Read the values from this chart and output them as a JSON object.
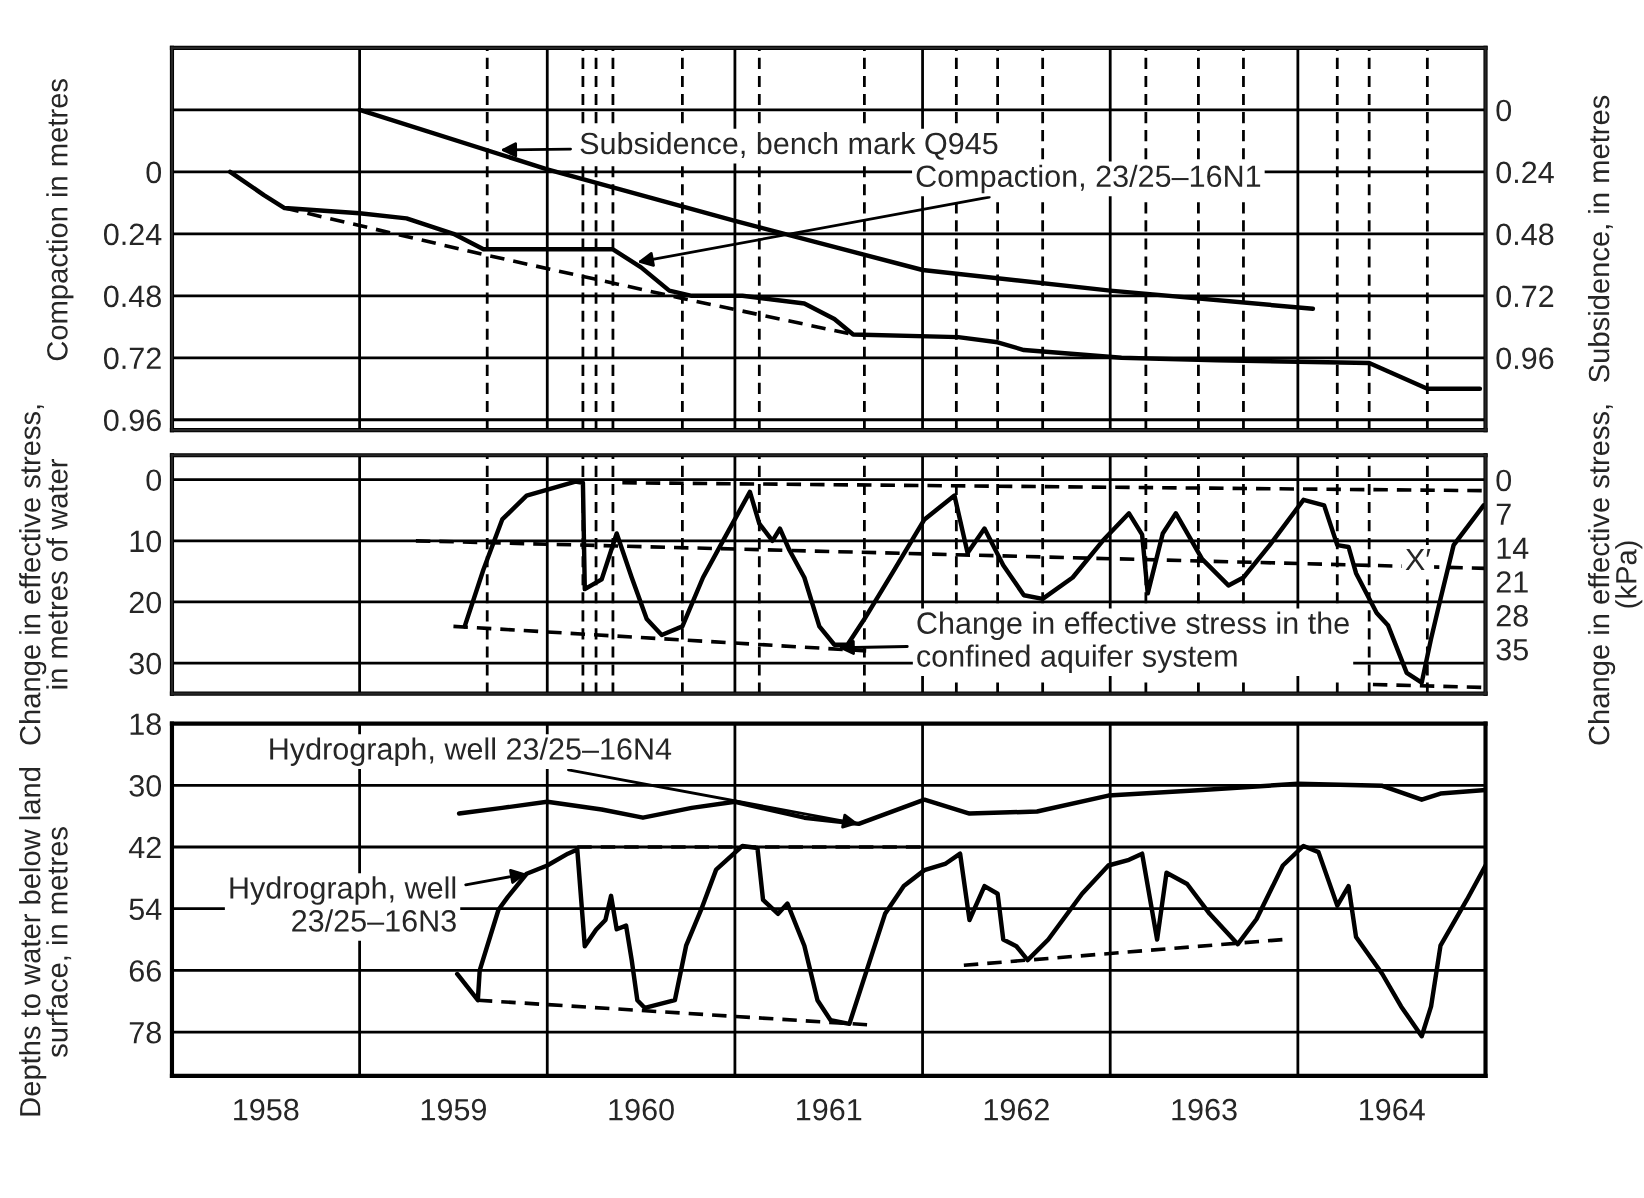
{
  "chart_data": [
    {
      "type": "line",
      "xlim": [
        1958,
        1965
      ],
      "xticks": [
        {
          "value": 1959,
          "label": null
        },
        {
          "value": 1960,
          "label": null
        },
        {
          "value": 1961,
          "label": null
        },
        {
          "value": 1962,
          "label": null
        },
        {
          "value": 1963,
          "label": null
        },
        {
          "value": 1964,
          "label": null
        }
      ],
      "ylim": [
        1.0,
        -0.48
      ],
      "yticks": [
        {
          "value": -0.24,
          "label": null
        },
        0,
        0.24,
        0.48,
        0.72,
        0.96
      ],
      "y2lim": [
        1.24,
        -0.24
      ],
      "y2ticks": [
        0,
        0.24,
        0.48,
        0.72,
        0.96
      ],
      "ylabel": "Compaction in metres",
      "y2label": "Subsidence, in metres",
      "grid": true,
      "tick_labels": "y",
      "series": [
        {
          "color": "#000000",
          "line_style": "solid",
          "x": [
            1959.0,
            1960.0,
            1961.0,
            1962.0,
            1963.0,
            1964.08
          ],
          "values": [
            0,
            0.23,
            0.43,
            0.62,
            0.7,
            0.77
          ],
          "axis": "y2"
        },
        {
          "color": "#000000",
          "line_style": "solid",
          "x": [
            1958.31,
            1958.49,
            1958.6,
            1959.0,
            1959.25,
            1959.5,
            1959.66,
            1960.18,
            1960.35,
            1960.5,
            1960.65,
            1960.77,
            1961.04,
            1961.37,
            1961.53,
            1961.63,
            1962.19,
            1962.4,
            1962.54,
            1963.06,
            1963.57,
            1964.38,
            1964.69,
            1964.97
          ],
          "values": [
            0,
            0.09,
            0.14,
            0.16,
            0.18,
            0.24,
            0.3,
            0.3,
            0.3,
            0.37,
            0.46,
            0.48,
            0.48,
            0.51,
            0.57,
            0.63,
            0.64,
            0.66,
            0.69,
            0.72,
            0.73,
            0.74,
            0.84,
            0.84
          ]
        },
        {
          "color": "#000000",
          "line_style": "dashed",
          "x": [
            1958.6,
            1959.66,
            1960.72,
            1961.63
          ],
          "values": [
            0.14,
            0.32,
            0.49,
            0.63
          ]
        }
      ],
      "ref_lines": [
        {
          "axis": "x",
          "value": 1959.68,
          "line_style": "dashed"
        },
        {
          "axis": "x",
          "value": 1960.19,
          "line_style": "dashed"
        },
        {
          "axis": "x",
          "value": 1960.26,
          "line_style": "dashed"
        },
        {
          "axis": "x",
          "value": 1960.35,
          "line_style": "dashed"
        },
        {
          "axis": "x",
          "value": 1960.72,
          "line_style": "dashed"
        },
        {
          "axis": "x",
          "value": 1961.13,
          "line_style": "dashed"
        },
        {
          "axis": "x",
          "value": 1961.69,
          "line_style": "dashed"
        },
        {
          "axis": "x",
          "value": 1962.18,
          "line_style": "dashed"
        },
        {
          "axis": "x",
          "value": 1962.4,
          "line_style": "dashed"
        },
        {
          "axis": "x",
          "value": 1962.64,
          "line_style": "dashed"
        },
        {
          "axis": "x",
          "value": 1963.19,
          "line_style": "dashed"
        },
        {
          "axis": "x",
          "value": 1963.47,
          "line_style": "dashed"
        },
        {
          "axis": "x",
          "value": 1963.71,
          "line_style": "dashed"
        },
        {
          "axis": "x",
          "value": 1964.21,
          "line_style": "dashed"
        },
        {
          "axis": "x",
          "value": 1964.38,
          "line_style": "dashed"
        },
        {
          "axis": "x",
          "value": 1964.69,
          "line_style": "dashed"
        }
      ],
      "annotations": [
        "Subsidence, bench mark Q945",
        {
          "text": "Compaction, 23/25–16N1",
          "x": 1960.48,
          "y": 0.35
        }
      ]
    },
    {
      "type": "line",
      "xlim": [
        1958,
        1965
      ],
      "xticks": [
        {
          "value": 1959,
          "label": null
        },
        {
          "value": 1960,
          "label": null
        },
        {
          "value": 1961,
          "label": null
        },
        {
          "value": 1962,
          "label": null
        },
        {
          "value": 1963,
          "label": null
        },
        {
          "value": 1964,
          "label": null
        }
      ],
      "ylim": [
        35,
        -4
      ],
      "yticks": [
        0,
        10,
        20,
        30
      ],
      "y2lim": [
        44.2,
        -5.1
      ],
      "y2ticks": [
        0,
        7,
        14,
        21,
        28,
        35
      ],
      "ylabel": "Change in effective stress,\nin metres of water",
      "y2label": "Change in effective stress,\n(kPa)",
      "grid": true,
      "tick_labels": "y",
      "series": [
        {
          "color": "#000000",
          "line_style": "solid",
          "x": [
            1959.56,
            1959.66,
            1959.76,
            1959.89,
            1960.15,
            1960.19,
            1960.2,
            1960.29,
            1960.37,
            1960.45,
            1960.53,
            1960.61,
            1960.72,
            1960.83,
            1960.94,
            1961.08,
            1961.13,
            1961.2,
            1961.24,
            1961.29,
            1961.37,
            1961.45,
            1961.53,
            1961.6,
            1961.69,
            1961.85,
            1962.01,
            1962.17,
            1962.24,
            1962.33,
            1962.43,
            1962.54,
            1962.64,
            1962.8,
            1962.96,
            1963.1,
            1963.17,
            1963.2,
            1963.28,
            1963.35,
            1963.49,
            1963.63,
            1963.71,
            1963.85,
            1964.03,
            1964.14,
            1964.21,
            1964.27,
            1964.31,
            1964.42,
            1964.48,
            1964.58,
            1964.66,
            1964.71,
            1964.76,
            1964.83,
            1964.99
          ],
          "values": [
            24,
            14.7,
            6.5,
            2.6,
            0.3,
            0.5,
            17.9,
            16.3,
            8.8,
            16,
            22.8,
            25.4,
            24,
            16,
            9.8,
            2.0,
            7.2,
            10,
            8,
            11.5,
            16,
            24,
            27,
            27,
            22.8,
            14.7,
            6.5,
            2.6,
            12,
            8,
            14,
            18.9,
            19.5,
            16,
            10,
            5.5,
            9,
            18.6,
            8.8,
            5.5,
            13,
            17.3,
            16,
            10.7,
            3.3,
            4.2,
            10.7,
            11,
            15.3,
            21.8,
            23.8,
            31.6,
            33.2,
            26,
            19.5,
            10.7,
            4.2
          ]
        },
        {
          "color": "#000000",
          "line_style": "dashed",
          "x": [
            1960.4,
            1965.0
          ],
          "values": [
            0.5,
            1.8
          ]
        },
        {
          "color": "#000000",
          "line_style": "dashed",
          "x": [
            1959.3,
            1965.0
          ],
          "values": [
            10,
            14.5
          ]
        },
        {
          "color": "#000000",
          "line_style": "dashed",
          "x": [
            1959.5,
            1961.7
          ],
          "values": [
            24,
            28
          ]
        },
        {
          "color": "#000000",
          "line_style": "dashed",
          "x": [
            1964.4,
            1965.0
          ],
          "values": [
            33.5,
            34
          ]
        }
      ],
      "ref_lines": [
        {
          "axis": "x",
          "value": 1959.68,
          "line_style": "dashed"
        },
        {
          "axis": "x",
          "value": 1960.19,
          "line_style": "dashed"
        },
        {
          "axis": "x",
          "value": 1960.26,
          "line_style": "dashed"
        },
        {
          "axis": "x",
          "value": 1960.35,
          "line_style": "dashed"
        },
        {
          "axis": "x",
          "value": 1960.72,
          "line_style": "dashed"
        },
        {
          "axis": "x",
          "value": 1961.13,
          "line_style": "dashed"
        },
        {
          "axis": "x",
          "value": 1961.69,
          "line_style": "dashed"
        },
        {
          "axis": "x",
          "value": 1962.18,
          "line_style": "dashed"
        },
        {
          "axis": "x",
          "value": 1962.4,
          "line_style": "dashed"
        },
        {
          "axis": "x",
          "value": 1962.64,
          "line_style": "dashed"
        },
        {
          "axis": "x",
          "value": 1963.19,
          "line_style": "dashed"
        },
        {
          "axis": "x",
          "value": 1963.47,
          "line_style": "dashed"
        },
        {
          "axis": "x",
          "value": 1963.71,
          "line_style": "dashed"
        },
        {
          "axis": "x",
          "value": 1964.21,
          "line_style": "dashed"
        },
        {
          "axis": "x",
          "value": 1964.38,
          "line_style": "dashed"
        },
        {
          "axis": "x",
          "value": 1964.69,
          "line_style": "dashed"
        }
      ],
      "annotations": [
        {
          "text": "Change in effective stress in the\nconfined aquifer system",
          "x": 1961.55,
          "y": 27.5
        },
        {
          "text": "X′",
          "x": 1964.64,
          "y": 13.5
        }
      ]
    },
    {
      "type": "line",
      "xlim": [
        1958,
        1965
      ],
      "xticks": [
        {
          "value": 1958.5,
          "label": "1958"
        },
        {
          "value": 1959,
          "label": null
        },
        {
          "value": 1959.5,
          "label": "1959"
        },
        {
          "value": 1960,
          "label": null
        },
        {
          "value": 1960.5,
          "label": "1960"
        },
        {
          "value": 1961,
          "label": null
        },
        {
          "value": 1961.5,
          "label": "1961"
        },
        {
          "value": 1962,
          "label": null
        },
        {
          "value": 1962.5,
          "label": "1962"
        },
        {
          "value": 1963,
          "label": null
        },
        {
          "value": 1963.5,
          "label": "1963"
        },
        {
          "value": 1964,
          "label": null
        },
        {
          "value": 1964.5,
          "label": "1964"
        }
      ],
      "ylim": [
        86.5,
        18
      ],
      "yticks": [
        18,
        30,
        42,
        54,
        66,
        78
      ],
      "ylabel": "Depths to water below land\nsurface, in metres",
      "grid": true,
      "series": [
        {
          "color": "#000000",
          "line_style": "solid",
          "x": [
            1959.53,
            1959.76,
            1960.0,
            1960.29,
            1960.51,
            1960.77,
            1961.0,
            1961.37,
            1961.66,
            1962.01,
            1962.25,
            1962.61,
            1962.99,
            1963.49,
            1964.0,
            1964.45,
            1964.66,
            1964.76,
            1965.0
          ],
          "values": [
            35.5,
            34.4,
            33.2,
            34.7,
            36.3,
            34.4,
            33.2,
            36.3,
            37.5,
            32.8,
            35.5,
            35.1,
            32,
            30.9,
            29.7,
            30.1,
            32.8,
            31.6,
            30.9
          ]
        },
        {
          "color": "#000000",
          "line_style": "solid",
          "x": [
            1959.52,
            1959.63,
            1959.64,
            1959.74,
            1959.79,
            1959.89,
            1960.0,
            1960.11,
            1960.16,
            1960.2,
            1960.26,
            1960.31,
            1960.34,
            1960.37,
            1960.42,
            1960.45,
            1960.48,
            1960.52,
            1960.68,
            1960.74,
            1960.82,
            1960.9,
            1961.04,
            1961.12,
            1961.15,
            1961.23,
            1961.28,
            1961.37,
            1961.44,
            1961.51,
            1961.61,
            1961.72,
            1961.8,
            1961.9,
            1962.01,
            1962.12,
            1962.2,
            1962.25,
            1962.33,
            1962.4,
            1962.43,
            1962.5,
            1962.56,
            1962.67,
            1962.85,
            1962.99,
            1963.1,
            1963.17,
            1963.25,
            1963.3,
            1963.41,
            1963.53,
            1963.68,
            1963.78,
            1963.92,
            1964.03,
            1964.11,
            1964.21,
            1964.27,
            1964.31,
            1964.45,
            1964.55,
            1964.66,
            1964.71,
            1964.76,
            1964.9,
            1965.0
          ],
          "values": [
            66.7,
            71.8,
            66,
            54.2,
            51.7,
            47.2,
            45.6,
            43.3,
            42.5,
            61.3,
            58.1,
            56.2,
            51.5,
            58,
            57.3,
            64,
            71.8,
            73.3,
            71.8,
            61.2,
            54.2,
            46.4,
            41.8,
            42.2,
            52.3,
            55,
            53,
            61.2,
            71.8,
            75.7,
            76.4,
            64,
            55,
            49.6,
            46.5,
            45.3,
            43.3,
            56.2,
            49.6,
            51.1,
            60,
            61.3,
            64,
            60,
            51.1,
            45.6,
            44.5,
            43.3,
            60,
            47,
            49.2,
            55,
            60.9,
            56,
            45.6,
            41.8,
            43,
            53.4,
            49.6,
            59.5,
            66.7,
            73,
            78.8,
            73,
            61.2,
            52.3,
            45.6
          ]
        },
        {
          "color": "#000000",
          "line_style": "dashed",
          "x": [
            1960.16,
            1962.0
          ],
          "values": [
            42,
            42
          ]
        },
        {
          "color": "#000000",
          "line_style": "dashed",
          "x": [
            1959.63,
            1961.72
          ],
          "values": [
            71.8,
            76.6
          ]
        },
        {
          "color": "#000000",
          "line_style": "dashed",
          "x": [
            1962.22,
            1963.92
          ],
          "values": [
            65,
            60
          ]
        }
      ],
      "annotations": [
        {
          "text": "Hydrograph, well 23/25–16N4",
          "x": 1961.66,
          "y": 37.5
        },
        {
          "text": "Hydrograph, well\n23/25–16N3",
          "x": 1959.89,
          "y": 47.2
        }
      ]
    }
  ]
}
